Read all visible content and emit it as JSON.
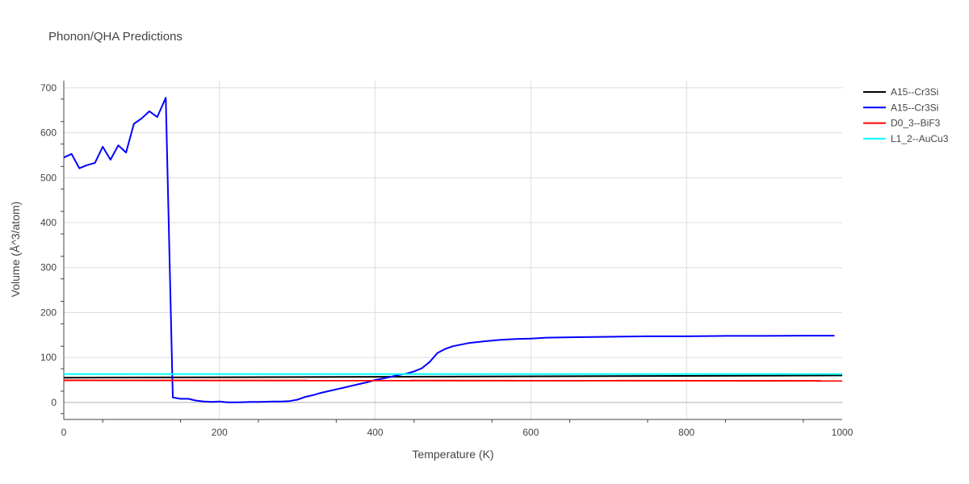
{
  "chart_data": {
    "type": "line",
    "title": "Phonon/QHA Predictions",
    "xlabel": "Temperature (K)",
    "ylabel": "Volume (Å^3/atom)",
    "xlim": [
      0,
      1000
    ],
    "ylim": [
      -38,
      716
    ],
    "x_ticks": [
      0,
      200,
      400,
      600,
      800,
      1000
    ],
    "y_ticks": [
      0,
      100,
      200,
      300,
      400,
      500,
      600,
      700
    ],
    "grid": true,
    "legend_position": "top-right",
    "series": [
      {
        "name": "A15--Cr3Si",
        "color": "#000000",
        "x": [
          0,
          1000
        ],
        "y": [
          55,
          60
        ]
      },
      {
        "name": "A15--Cr3Si",
        "color": "#0000ff",
        "x": [
          0,
          10,
          20,
          30,
          40,
          50,
          60,
          70,
          80,
          90,
          100,
          110,
          120,
          131,
          140,
          150,
          160,
          170,
          180,
          190,
          200,
          210,
          220,
          230,
          240,
          250,
          260,
          270,
          280,
          290,
          300,
          310,
          320,
          330,
          340,
          350,
          360,
          370,
          380,
          390,
          400,
          410,
          420,
          430,
          440,
          450,
          460,
          470,
          480,
          490,
          500,
          520,
          540,
          560,
          580,
          600,
          620,
          650,
          700,
          750,
          800,
          850,
          900,
          950,
          990
        ],
        "y": [
          545,
          553,
          521,
          528,
          533,
          569,
          540,
          572,
          556,
          620,
          632,
          648,
          635,
          678,
          11,
          8,
          8,
          4,
          2,
          1,
          2,
          0,
          0,
          0.5,
          1,
          1,
          1.5,
          2,
          2,
          3,
          6,
          12,
          16,
          21,
          25,
          29,
          33,
          37,
          41,
          45,
          50,
          53,
          57,
          61,
          64,
          69,
          76,
          90,
          110,
          119,
          125,
          132,
          136,
          139,
          141,
          142,
          144,
          145,
          146,
          147,
          147,
          148,
          148,
          148.5,
          148.5
        ]
      },
      {
        "name": "D0_3--BiF3",
        "color": "#ff0000",
        "x": [
          0,
          1000
        ],
        "y": [
          49,
          48
        ]
      },
      {
        "name": "L1_2--AuCu3",
        "color": "#00ffff",
        "x": [
          0,
          1000
        ],
        "y": [
          63,
          63
        ]
      }
    ]
  }
}
